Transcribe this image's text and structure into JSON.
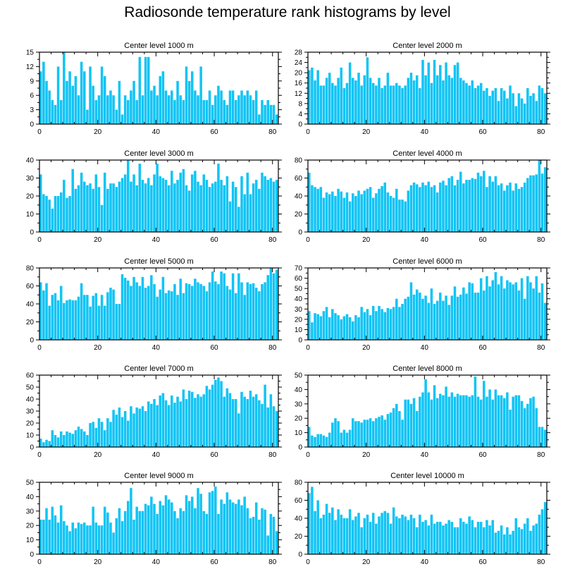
{
  "title": "Radiosonde temperature rank histograms by level",
  "colors": {
    "bar": "#11c4f5",
    "axis": "#000000",
    "background": "#ffffff"
  },
  "chart_data": [
    {
      "type": "bar",
      "title": "Center level 1000 m",
      "xlim": [
        0,
        82
      ],
      "ylim": [
        0,
        15
      ],
      "xticks": [
        0,
        20,
        40,
        60,
        80
      ],
      "yticks": [
        0,
        3,
        6,
        9,
        12,
        15
      ],
      "values": [
        11,
        13,
        9,
        7,
        5,
        4,
        12,
        5,
        15,
        9,
        11,
        8,
        10,
        6,
        13,
        11,
        3,
        12,
        8,
        5,
        6,
        12,
        10,
        6,
        7,
        6,
        3,
        9,
        2,
        6,
        5,
        7,
        9,
        5,
        14,
        6,
        14,
        14,
        7,
        8,
        6,
        10,
        11,
        7,
        6,
        7,
        5,
        9,
        6,
        5,
        12,
        9,
        11,
        7,
        6,
        12,
        5,
        5,
        7,
        4,
        6,
        8,
        7,
        5,
        4,
        7,
        7,
        5,
        6,
        7,
        6,
        7,
        6,
        5,
        7,
        2,
        5,
        4,
        5,
        4,
        4,
        2
      ]
    },
    {
      "type": "bar",
      "title": "Center level 2000 m",
      "xlim": [
        0,
        82
      ],
      "ylim": [
        0,
        28
      ],
      "xticks": [
        0,
        20,
        40,
        60,
        80
      ],
      "yticks": [
        0,
        4,
        8,
        12,
        16,
        20,
        24,
        28
      ],
      "values": [
        21,
        22,
        17,
        21,
        15,
        15,
        18,
        20,
        16,
        15,
        18,
        22,
        14,
        16,
        24,
        18,
        17,
        20,
        15,
        19,
        26,
        18,
        16,
        15,
        18,
        14,
        15,
        20,
        15,
        15,
        16,
        15,
        14,
        15,
        18,
        20,
        17,
        19,
        14,
        25,
        19,
        24,
        16,
        25,
        19,
        23,
        17,
        24,
        19,
        18,
        23,
        24,
        18,
        17,
        16,
        15,
        17,
        14,
        15,
        16,
        13,
        14,
        11,
        13,
        14,
        9,
        14,
        13,
        10,
        15,
        12,
        7,
        12,
        10,
        8,
        14,
        11,
        12,
        9,
        15,
        14,
        12
      ]
    },
    {
      "type": "bar",
      "title": "Center level 3000 m",
      "xlim": [
        0,
        82
      ],
      "ylim": [
        0,
        40
      ],
      "xticks": [
        0,
        20,
        40,
        60,
        80
      ],
      "yticks": [
        0,
        10,
        20,
        30,
        40
      ],
      "values": [
        32,
        21,
        20,
        18,
        13,
        20,
        20,
        22,
        29,
        19,
        20,
        35,
        24,
        26,
        33,
        28,
        26,
        27,
        24,
        32,
        25,
        15,
        33,
        24,
        27,
        27,
        25,
        28,
        30,
        32,
        40,
        28,
        32,
        26,
        38,
        29,
        27,
        30,
        26,
        32,
        38,
        31,
        30,
        29,
        26,
        34,
        27,
        29,
        33,
        35,
        26,
        23,
        32,
        34,
        28,
        26,
        32,
        29,
        25,
        27,
        28,
        38,
        29,
        26,
        31,
        17,
        28,
        25,
        14,
        31,
        21,
        33,
        21,
        27,
        29,
        24,
        33,
        31,
        29,
        30,
        28,
        29
      ]
    },
    {
      "type": "bar",
      "title": "Center level 4000 m",
      "xlim": [
        0,
        82
      ],
      "ylim": [
        0,
        80
      ],
      "xticks": [
        0,
        20,
        40,
        60,
        80
      ],
      "yticks": [
        0,
        20,
        40,
        60,
        80
      ],
      "values": [
        66,
        52,
        50,
        48,
        50,
        38,
        44,
        42,
        45,
        40,
        48,
        45,
        38,
        44,
        34,
        43,
        40,
        46,
        42,
        46,
        48,
        50,
        38,
        43,
        48,
        51,
        55,
        44,
        40,
        38,
        48,
        36,
        36,
        34,
        46,
        52,
        55,
        53,
        50,
        55,
        52,
        56,
        50,
        52,
        44,
        55,
        57,
        52,
        60,
        62,
        52,
        58,
        67,
        54,
        58,
        58,
        60,
        59,
        66,
        62,
        68,
        50,
        62,
        56,
        62,
        52,
        54,
        46,
        52,
        55,
        46,
        54,
        48,
        50,
        55,
        60,
        63,
        63,
        64,
        80,
        65,
        72
      ]
    },
    {
      "type": "bar",
      "title": "Center level 5000 m",
      "xlim": [
        0,
        82
      ],
      "ylim": [
        0,
        80
      ],
      "xticks": [
        0,
        20,
        40,
        60,
        80
      ],
      "yticks": [
        0,
        20,
        40,
        60,
        80
      ],
      "values": [
        64,
        55,
        63,
        38,
        50,
        52,
        44,
        60,
        41,
        44,
        45,
        44,
        44,
        48,
        63,
        50,
        50,
        37,
        49,
        52,
        38,
        50,
        38,
        53,
        58,
        56,
        40,
        40,
        73,
        69,
        66,
        60,
        70,
        64,
        60,
        70,
        58,
        60,
        72,
        62,
        48,
        56,
        70,
        52,
        55,
        54,
        62,
        50,
        68,
        52,
        63,
        62,
        60,
        68,
        64,
        62,
        60,
        54,
        64,
        76,
        65,
        62,
        76,
        74,
        60,
        56,
        74,
        52,
        74,
        64,
        50,
        64,
        62,
        63,
        58,
        54,
        62,
        64,
        72,
        80,
        74,
        78
      ]
    },
    {
      "type": "bar",
      "title": "Center level 6000 m",
      "xlim": [
        0,
        82
      ],
      "ylim": [
        0,
        70
      ],
      "xticks": [
        0,
        20,
        40,
        60,
        80
      ],
      "yticks": [
        0,
        10,
        20,
        30,
        40,
        50,
        60,
        70
      ],
      "values": [
        28,
        17,
        26,
        25,
        23,
        28,
        32,
        22,
        30,
        26,
        24,
        20,
        23,
        25,
        22,
        18,
        24,
        22,
        32,
        27,
        30,
        24,
        33,
        28,
        33,
        30,
        27,
        31,
        30,
        32,
        40,
        32,
        35,
        40,
        42,
        56,
        44,
        49,
        46,
        40,
        43,
        36,
        50,
        35,
        38,
        46,
        38,
        43,
        34,
        43,
        52,
        42,
        44,
        51,
        45,
        56,
        55,
        46,
        46,
        60,
        48,
        62,
        52,
        58,
        66,
        54,
        62,
        50,
        58,
        56,
        54,
        56,
        48,
        60,
        40,
        62,
        56,
        50,
        62,
        46,
        55,
        36
      ]
    },
    {
      "type": "bar",
      "title": "Center level 7000 m",
      "xlim": [
        0,
        82
      ],
      "ylim": [
        0,
        60
      ],
      "xticks": [
        0,
        20,
        40,
        60,
        80
      ],
      "yticks": [
        0,
        10,
        20,
        30,
        40,
        50,
        60
      ],
      "values": [
        7,
        4,
        6,
        5,
        14,
        10,
        8,
        13,
        10,
        13,
        12,
        11,
        14,
        17,
        15,
        13,
        10,
        20,
        21,
        16,
        24,
        21,
        14,
        24,
        21,
        31,
        27,
        33,
        25,
        30,
        22,
        34,
        28,
        33,
        32,
        34,
        30,
        38,
        36,
        40,
        35,
        43,
        45,
        39,
        35,
        43,
        37,
        42,
        38,
        48,
        40,
        47,
        46,
        41,
        44,
        42,
        44,
        51,
        48,
        52,
        56,
        58,
        55,
        42,
        49,
        45,
        40,
        40,
        28,
        46,
        42,
        40,
        47,
        42,
        44,
        39,
        36,
        52,
        33,
        44,
        34,
        30
      ]
    },
    {
      "type": "bar",
      "title": "Center level 8000 m",
      "xlim": [
        0,
        82
      ],
      "ylim": [
        0,
        50
      ],
      "xticks": [
        0,
        20,
        40,
        60,
        80
      ],
      "yticks": [
        0,
        10,
        20,
        30,
        40,
        50
      ],
      "values": [
        14,
        8,
        7,
        9,
        9,
        8,
        7,
        10,
        17,
        20,
        18,
        10,
        12,
        10,
        12,
        20,
        18,
        18,
        17,
        19,
        19,
        20,
        18,
        20,
        21,
        22,
        19,
        23,
        24,
        27,
        30,
        25,
        19,
        33,
        33,
        30,
        34,
        25,
        35,
        38,
        47,
        38,
        33,
        43,
        34,
        37,
        36,
        42,
        35,
        38,
        35,
        37,
        36,
        36,
        36,
        35,
        36,
        49,
        35,
        33,
        46,
        35,
        40,
        33,
        40,
        36,
        36,
        34,
        38,
        26,
        35,
        36,
        36,
        32,
        27,
        30,
        34,
        35,
        27,
        14,
        14,
        12
      ]
    },
    {
      "type": "bar",
      "title": "Center level 9000 m",
      "xlim": [
        0,
        82
      ],
      "ylim": [
        0,
        50
      ],
      "xticks": [
        0,
        20,
        40,
        60,
        80
      ],
      "yticks": [
        0,
        10,
        20,
        30,
        40,
        50
      ],
      "values": [
        24,
        24,
        32,
        24,
        33,
        27,
        22,
        34,
        23,
        20,
        16,
        22,
        18,
        22,
        21,
        22,
        20,
        20,
        33,
        22,
        20,
        20,
        33,
        29,
        22,
        15,
        25,
        32,
        23,
        30,
        37,
        46,
        24,
        33,
        30,
        30,
        35,
        34,
        40,
        35,
        28,
        37,
        34,
        41,
        38,
        36,
        30,
        25,
        32,
        30,
        41,
        37,
        40,
        32,
        46,
        42,
        30,
        28,
        43,
        44,
        47,
        28,
        38,
        35,
        43,
        38,
        36,
        35,
        38,
        34,
        40,
        32,
        25,
        26,
        36,
        24,
        32,
        31,
        13,
        28,
        26,
        16
      ]
    },
    {
      "type": "bar",
      "title": "Center level 10000 m",
      "xlim": [
        0,
        82
      ],
      "ylim": [
        0,
        80
      ],
      "xticks": [
        0,
        20,
        40,
        60,
        80
      ],
      "yticks": [
        0,
        20,
        40,
        60,
        80
      ],
      "values": [
        68,
        75,
        48,
        60,
        40,
        44,
        56,
        46,
        52,
        38,
        50,
        44,
        40,
        40,
        50,
        38,
        42,
        46,
        30,
        40,
        44,
        36,
        46,
        34,
        42,
        46,
        48,
        46,
        34,
        52,
        42,
        40,
        44,
        42,
        38,
        44,
        40,
        30,
        44,
        36,
        38,
        32,
        44,
        34,
        36,
        36,
        32,
        34,
        38,
        36,
        30,
        30,
        40,
        36,
        34,
        42,
        38,
        30,
        36,
        36,
        30,
        38,
        32,
        38,
        24,
        26,
        32,
        22,
        30,
        22,
        26,
        40,
        30,
        28,
        34,
        40,
        26,
        32,
        34,
        44,
        50,
        58
      ]
    }
  ]
}
